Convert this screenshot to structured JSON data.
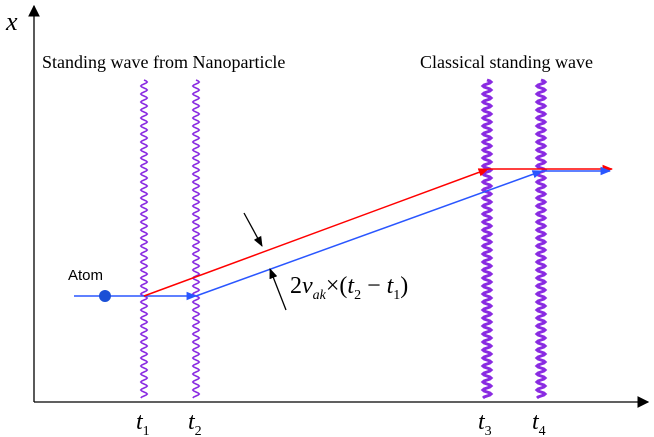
{
  "axis": {
    "y_label": "x"
  },
  "labels": {
    "left_title": "Standing wave from Nanoparticle",
    "right_title": "Classical standing wave",
    "atom": "Atom"
  },
  "ticks": [
    {
      "base": "t",
      "sub": "1"
    },
    {
      "base": "t",
      "sub": "2"
    },
    {
      "base": "t",
      "sub": "3"
    },
    {
      "base": "t",
      "sub": "4"
    }
  ],
  "formula": {
    "coef": "2",
    "v": "v",
    "v_sub": "ak",
    "times": "×(",
    "t_a": "t",
    "t_a_sub": "2",
    "minus": " − ",
    "t_b": "t",
    "t_b_sub": "1",
    "close": ")"
  },
  "colors": {
    "axis": "#000000",
    "wave": "#8a2be2",
    "red_path": "#ff0000",
    "blue_path": "#2a56ff",
    "atom": "#1a4fd6"
  }
}
